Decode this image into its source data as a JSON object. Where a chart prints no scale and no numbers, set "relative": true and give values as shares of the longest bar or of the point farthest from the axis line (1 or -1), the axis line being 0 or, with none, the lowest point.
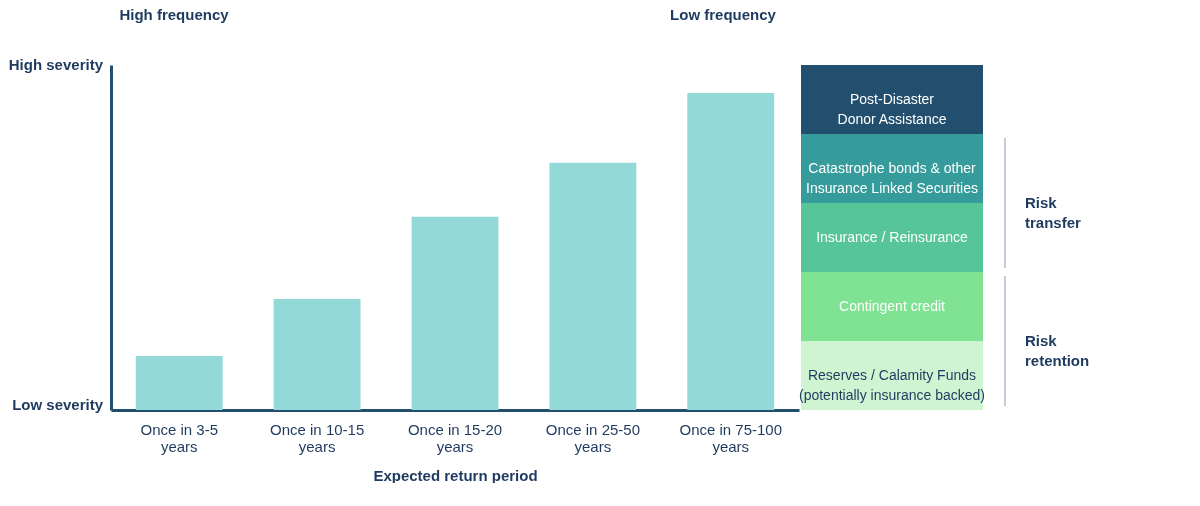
{
  "chart_data": [
    {
      "type": "bar",
      "relative": true,
      "xlabel": "Expected return period",
      "categories": [
        "Once in 3-5 years",
        "Once in 10-15 years",
        "Once in 15-20 years",
        "Once in 25-50 years",
        "Once in 75-100 years"
      ],
      "values": [
        0.17,
        0.35,
        0.61,
        0.78,
        1.0
      ],
      "color": "#93d9d8",
      "annotations": [
        "High frequency",
        "Low frequency",
        "High severity",
        "Low severity"
      ]
    },
    {
      "type": "other",
      "categories": [
        "Post-Disaster Donor Assistance",
        "Catastrophe bonds & other Insurance Linked Securities",
        "Insurance / Reinsurance",
        "Contingent credit",
        "Reserves / Calamity Funds (potentially insurance backed)"
      ],
      "colors": [
        "#224f6e",
        "#369b9b",
        "#56c597",
        "#7fe393",
        "#cff4d1"
      ],
      "annotations": [
        "Risk transfer",
        "Risk retention"
      ]
    }
  ]
}
